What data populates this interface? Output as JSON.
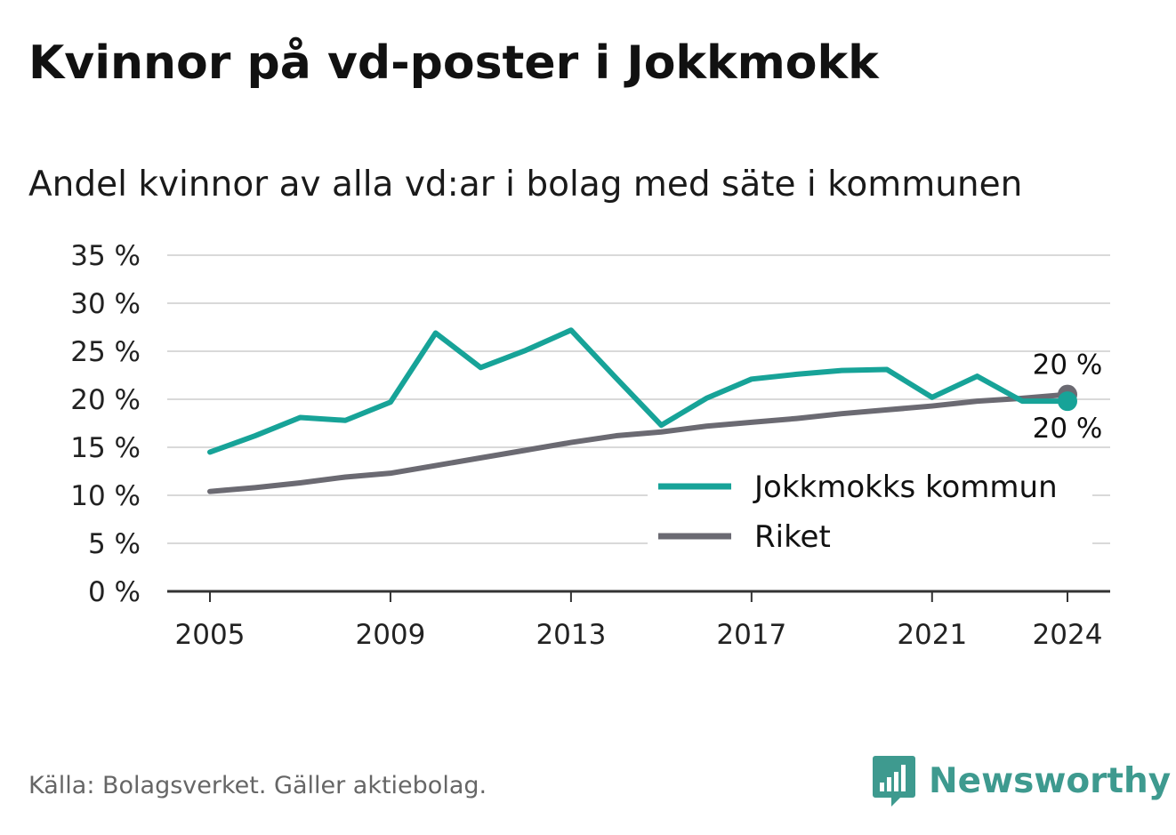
{
  "header": {
    "title": "Kvinnor på vd-poster i Jokkmokk",
    "subtitle": "Andel kvinnor av alla vd:ar i bolag med säte i kommunen"
  },
  "footer": {
    "source": "Källa: Bolagsverket. Gäller aktiebolag.",
    "brand": "Newsworthy",
    "brand_icon": "bar-chart-bubble-icon"
  },
  "colors": {
    "jokkmokk": "#17a398",
    "riket": "#6b6a72",
    "grid": "#d9d9d9",
    "axis": "#333333",
    "brand": "#3e9a8f"
  },
  "chart_data": {
    "type": "line",
    "title": "Kvinnor på vd-poster i Jokkmokk",
    "subtitle": "Andel kvinnor av alla vd:ar i bolag med säte i kommunen",
    "x": [
      2005,
      2006,
      2007,
      2008,
      2009,
      2010,
      2011,
      2012,
      2013,
      2014,
      2015,
      2016,
      2017,
      2018,
      2019,
      2020,
      2021,
      2022,
      2023,
      2024
    ],
    "x_ticks": [
      "2005",
      "2009",
      "2013",
      "2017",
      "2021",
      "2024"
    ],
    "y_ticks": [
      "0 %",
      "5 %",
      "10 %",
      "15 %",
      "20 %",
      "25 %",
      "30 %",
      "35 %"
    ],
    "ylim": [
      0,
      35
    ],
    "grid": true,
    "legend_position": "bottom-right",
    "series": [
      {
        "name": "Jokkmokks kommun",
        "color": "#17a398",
        "values": [
          14.5,
          16.2,
          18.1,
          17.8,
          19.7,
          26.9,
          23.3,
          25.1,
          27.2,
          22.2,
          17.3,
          20.1,
          22.1,
          22.6,
          23.0,
          23.1,
          20.2,
          22.4,
          19.8,
          19.8
        ],
        "end_label": "20 %"
      },
      {
        "name": "Riket",
        "color": "#6b6a72",
        "values": [
          10.4,
          10.8,
          11.3,
          11.9,
          12.3,
          13.1,
          13.9,
          14.7,
          15.5,
          16.2,
          16.6,
          17.2,
          17.6,
          18.0,
          18.5,
          18.9,
          19.3,
          19.8,
          20.1,
          20.5
        ],
        "end_label": "20 %"
      }
    ]
  }
}
